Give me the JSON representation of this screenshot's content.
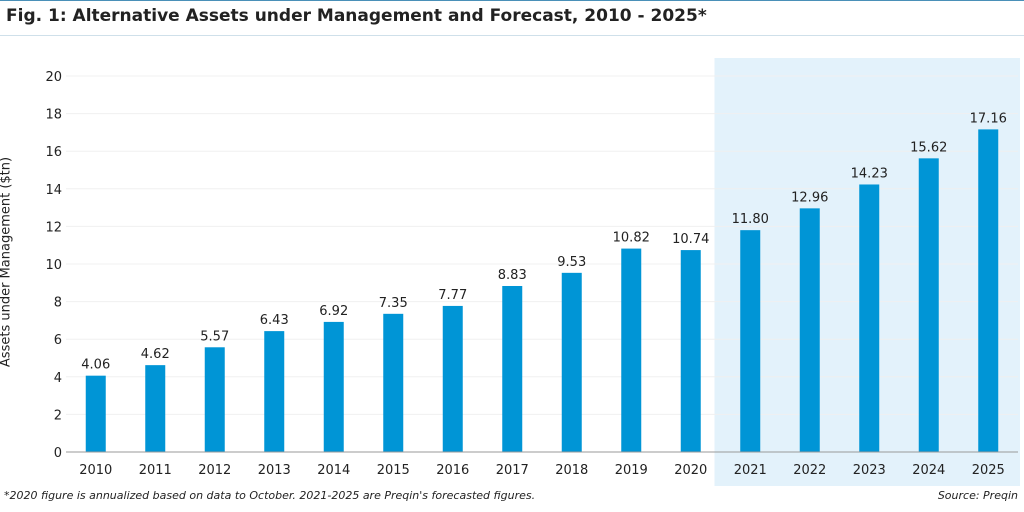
{
  "title": "Fig. 1: Alternative Assets under Management and Forecast, 2010 - 2025*",
  "footnote": "*2020 figure is annualized based on data to October. 2021-2025 are Preqin's forecasted figures.",
  "source": "Source: Preqin",
  "colors": {
    "bar": "#0095d6",
    "forecast_shade": "#e3f2fb"
  },
  "chart_data": {
    "type": "bar",
    "title": "Fig. 1: Alternative Assets under Management and Forecast, 2010 - 2025*",
    "xlabel": "",
    "ylabel": "Assets under Management ($tn)",
    "ylim": [
      0,
      20
    ],
    "yticks": [
      0,
      2,
      4,
      6,
      8,
      10,
      12,
      14,
      16,
      18,
      20
    ],
    "categories": [
      "2010",
      "2011",
      "2012",
      "2013",
      "2014",
      "2015",
      "2016",
      "2017",
      "2018",
      "2019",
      "2020",
      "2021",
      "2022",
      "2023",
      "2024",
      "2025"
    ],
    "values": [
      4.06,
      4.62,
      5.57,
      6.43,
      6.92,
      7.35,
      7.77,
      8.83,
      9.53,
      10.82,
      10.74,
      11.8,
      12.96,
      14.23,
      15.62,
      17.16
    ],
    "value_labels": [
      "4.06",
      "4.62",
      "5.57",
      "6.43",
      "6.92",
      "7.35",
      "7.77",
      "8.83",
      "9.53",
      "10.82",
      "10.74",
      "11.80",
      "12.96",
      "14.23",
      "15.62",
      "17.16"
    ],
    "forecast_categories": [
      "2021",
      "2022",
      "2023",
      "2024",
      "2025"
    ],
    "grid": true,
    "legend": "none"
  }
}
